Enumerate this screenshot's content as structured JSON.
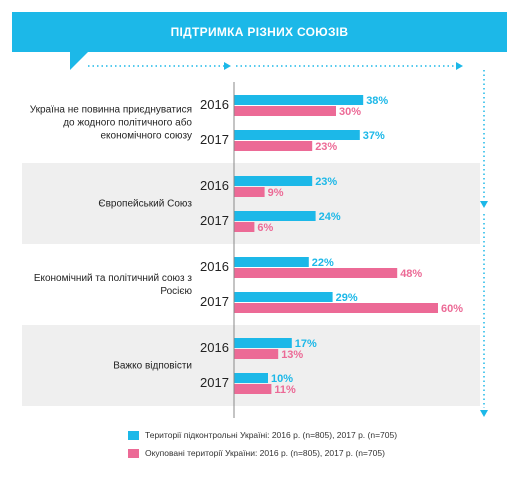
{
  "header": {
    "title": "ПІДТРИМКА РІЗНИХ СОЮЗІВ"
  },
  "colors": {
    "controlled": "#1cb8e8",
    "occupied": "#ec6a96",
    "accent": "#1cb8e8"
  },
  "legend": [
    {
      "label": "Території підконтрольні Україні:  2016 р. (n=805), 2017 р. (n=705)"
    },
    {
      "label": "Окуповані території України: 2016 р. (n=805), 2017 р. (n=705)"
    }
  ],
  "chart_data": {
    "type": "bar",
    "orientation": "horizontal",
    "title": "ПІДТРИМКА РІЗНИХ СОЮЗІВ",
    "unit": "%",
    "series": [
      {
        "name": "Території підконтрольні Україні:  2016 р. (n=805), 2017 р. (n=705)",
        "color": "#1cb8e8"
      },
      {
        "name": "Окуповані території України: 2016 р. (n=805), 2017 р. (n=705)",
        "color": "#ec6a96"
      }
    ],
    "groups": [
      {
        "label": "Україна не повинна приєднуватися\nдо жодного політичного або\nекономічного союзу",
        "shaded": false,
        "years": [
          {
            "year": "2016",
            "values": [
              38,
              30
            ]
          },
          {
            "year": "2017",
            "values": [
              37,
              23
            ]
          }
        ]
      },
      {
        "label": "Європейський Союз",
        "shaded": true,
        "years": [
          {
            "year": "2016",
            "values": [
              23,
              9
            ]
          },
          {
            "year": "2017",
            "values": [
              24,
              6
            ]
          }
        ]
      },
      {
        "label": "Економічний та політичний союз з\nРосією",
        "shaded": false,
        "years": [
          {
            "year": "2016",
            "values": [
              22,
              48
            ]
          },
          {
            "year": "2017",
            "values": [
              29,
              60
            ]
          }
        ]
      },
      {
        "label": "Важко відповісти",
        "shaded": true,
        "years": [
          {
            "year": "2016",
            "values": [
              17,
              13
            ]
          },
          {
            "year": "2017",
            "values": [
              10,
              11
            ]
          }
        ]
      }
    ]
  }
}
